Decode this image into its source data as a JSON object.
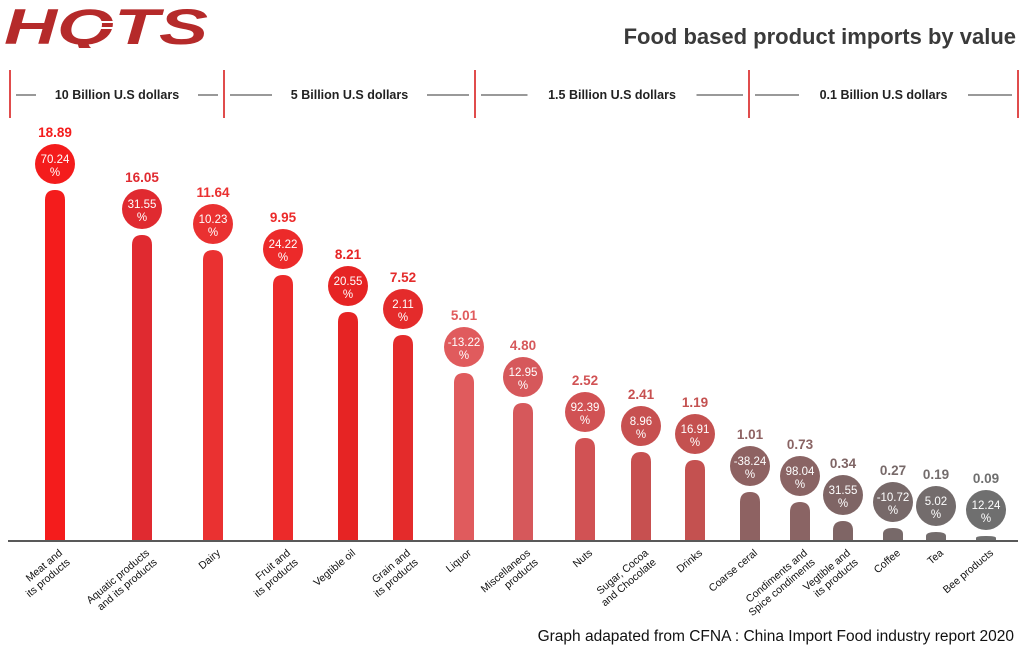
{
  "header": {
    "logo_text": "HQTS",
    "title": "Food based product imports by value"
  },
  "footer": {
    "source": "Graph adapated from CFNA : China Import Food industry report 2020"
  },
  "colors": {
    "logo": "#b52a2a",
    "group_1": "#f41c1c",
    "group_2": "#e02a30",
    "group_3": "#d8585a",
    "group_4": "#8e6262",
    "group_5": "#737070",
    "divider": "#d81f1f"
  },
  "chart_data": {
    "type": "bar",
    "title": "Food based product imports by value",
    "xlabel": "",
    "ylabel": "",
    "scale_groups": [
      {
        "label": "10 Billion U.S dollars",
        "categories": [
          "Meat and its products",
          "Aquatic products and its products",
          "Dairy"
        ]
      },
      {
        "label": "5 Billion U.S dollars",
        "categories": [
          "Fruit and its products",
          "Vegtible oil",
          "Grain and its products"
        ]
      },
      {
        "label": "1.5 Billion U.S dollars",
        "categories": [
          "Liquor",
          "Miscellaneos products",
          "Nuts",
          "Sugar, Cocoa and Chocolate",
          "Drinks"
        ]
      },
      {
        "label": "0.1 Billion U.S dollars",
        "categories": [
          "Coarse ceral",
          "Condiments and Spice condiments",
          "Vegtible and its products",
          "Coffee",
          "Tea",
          "Bee products"
        ]
      }
    ],
    "categories": [
      "Meat and its products",
      "Aquatic products and its products",
      "Dairy",
      "Fruit and its products",
      "Vegtible oil",
      "Grain and its products",
      "Liquor",
      "Miscellaneos products",
      "Nuts",
      "Sugar, Cocoa and Chocolate",
      "Drinks",
      "Coarse ceral",
      "Condiments and Spice condiments",
      "Vegtible and its products",
      "Coffee",
      "Tea",
      "Bee products"
    ],
    "category_lines": [
      [
        "Meat and",
        "its products"
      ],
      [
        "Aquatic products",
        "and its products"
      ],
      [
        "Dairy"
      ],
      [
        "Fruit and",
        "its products"
      ],
      [
        "Vegtible oil"
      ],
      [
        "Grain and",
        "its products"
      ],
      [
        "Liquor"
      ],
      [
        "Miscellaneos",
        "products"
      ],
      [
        "Nuts"
      ],
      [
        "Sugar, Cocoa",
        "and Chocolate"
      ],
      [
        "Drinks"
      ],
      [
        "Coarse ceral"
      ],
      [
        "Condiments and",
        "Spice condiments"
      ],
      [
        "Vegtible and",
        "its products"
      ],
      [
        "Coffee"
      ],
      [
        "Tea"
      ],
      [
        "Bee products"
      ]
    ],
    "values": [
      18.89,
      16.05,
      11.64,
      9.95,
      8.21,
      7.52,
      5.01,
      4.8,
      2.52,
      2.41,
      1.19,
      1.01,
      0.73,
      0.34,
      0.27,
      0.19,
      0.09
    ],
    "value_labels": [
      "18.89",
      "16.05",
      "11.64",
      "9.95",
      "8.21",
      "7.52",
      "5.01",
      "4.80",
      "2.52",
      "2.41",
      "1.19",
      "1.01",
      "0.73",
      "0.34",
      "0.27",
      "0.19",
      "0.09"
    ],
    "change_percent": [
      "70.24",
      "31.55",
      "10.23",
      "24.22",
      "20.55",
      "2.11",
      "-13.22",
      "12.95",
      "92.39",
      "8.96",
      "16.91",
      "-38.24",
      "98.04",
      "31.55",
      "-10.72",
      "5.02",
      "12.24"
    ],
    "percent_sign": "%",
    "bar_colors": [
      "#f41c1c",
      "#e02a30",
      "#ea3131",
      "#ec2a2a",
      "#e62424",
      "#e42b2b",
      "#e05b5d",
      "#d6585b",
      "#d15254",
      "#c75050",
      "#c45150",
      "#8e6262",
      "#8a6464",
      "#7f6565",
      "#776969",
      "#736c6c",
      "#6f6f6f"
    ],
    "circle_colors": [
      "#f41c1c",
      "#e02a30",
      "#ea3131",
      "#ec2a2a",
      "#e62424",
      "#e42b2b",
      "#e05b5d",
      "#d6585b",
      "#d15254",
      "#c75050",
      "#c45150",
      "#8e6262",
      "#8a6464",
      "#7f6565",
      "#776969",
      "#736c6c",
      "#6f6f6f"
    ],
    "value_label_colors": [
      "#f41c1c",
      "#e02a30",
      "#ea3131",
      "#ec2a2a",
      "#e62424",
      "#e42b2b",
      "#e05b5d",
      "#d6585b",
      "#d15254",
      "#c75050",
      "#c45150",
      "#8e6262",
      "#8a6464",
      "#7f6565",
      "#776969",
      "#736c6c",
      "#6f6f6f"
    ],
    "grid": false,
    "legend": "none"
  }
}
